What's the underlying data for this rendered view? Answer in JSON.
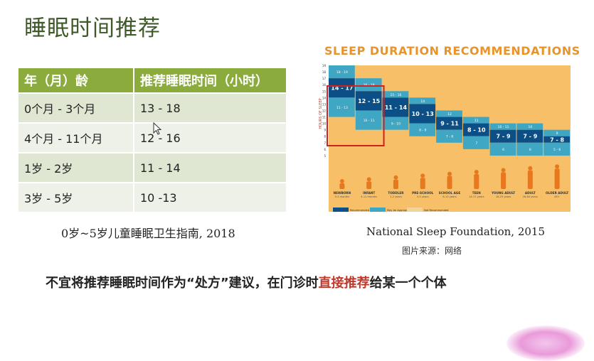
{
  "title": "睡眠时间推荐",
  "table": {
    "headers": [
      "年（月）龄",
      "推荐睡眠时间（小时）"
    ],
    "rows": [
      {
        "age": "0个月 - 3个月",
        "hours": "13 - 18"
      },
      {
        "age": "4个月 - 11个月",
        "hours": "12 - 16"
      },
      {
        "age": "1岁 - 2岁",
        "hours": "11 - 14"
      },
      {
        "age": "3岁 - 5岁",
        "hours": "10 -13"
      }
    ],
    "caption": "0岁~5岁儿童睡眠卫生指南, 2018"
  },
  "chart": {
    "heading": "SLEEP DURATION RECOMMENDATIONS",
    "caption": "National Sleep Foundation, 2015",
    "source_note": "图片来源：网络"
  },
  "chart_data": {
    "type": "bar",
    "title": "SLEEP DURATION RECOMMENDATIONS",
    "ylabel": "HOURS OF SLEEP",
    "categories": [
      "NEWBORN",
      "INFANT",
      "TODDLER",
      "PRE-SCHOOL",
      "SCHOOL AGE",
      "TEEN",
      "YOUNG ADULT",
      "ADULT",
      "OLDER ADULT"
    ],
    "category_ages": [
      "0-3 months",
      "4-11 months",
      "1-2 years",
      "3-5 years",
      "6-13 years",
      "14-17 years",
      "18-25 years",
      "26-64 years",
      "65+"
    ],
    "recommended_labels": [
      "14 - 17",
      "12 - 15",
      "11 - 14",
      "10 - 13",
      "9 - 11",
      "8 - 10",
      "7 - 9",
      "7 - 9",
      "7 - 8"
    ],
    "recommended_ranges": [
      [
        14,
        17
      ],
      [
        12,
        15
      ],
      [
        11,
        14
      ],
      [
        10,
        13
      ],
      [
        9,
        11
      ],
      [
        8,
        10
      ],
      [
        7,
        9
      ],
      [
        7,
        9
      ],
      [
        7,
        8
      ]
    ],
    "upper_appropriate_labels": [
      "18 - 19",
      "16 - 18",
      "15 - 16",
      "14",
      "12",
      "11",
      "10 - 11",
      "10",
      "9"
    ],
    "lower_appropriate_labels": [
      "11 - 13",
      "10 - 11",
      "9 - 10",
      "8 - 9",
      "7 - 8",
      "7",
      "6",
      "6",
      "5 - 6"
    ],
    "ylim": [
      4,
      19
    ],
    "legend": [
      "Recommended",
      "May be Appropriate",
      "Not Recommended"
    ],
    "highlighted_categories": [
      "NEWBORN",
      "INFANT"
    ],
    "legend_placement": "bottom-left"
  },
  "note": {
    "before": "不宜将推荐睡眠时间作为“处方”建议，在门诊时",
    "highlight": "直接推荐",
    "after": "给某一个个体"
  },
  "colors": {
    "title": "#3f5a2a",
    "table_header": "#8bab3d",
    "chart_heading": "#e8942a",
    "chart_bg": "#f7c068",
    "recommended": "#0b4f86",
    "appropriate": "#3fa7c4",
    "highlight_box": "#d02020",
    "note_highlight": "#c0392b"
  }
}
